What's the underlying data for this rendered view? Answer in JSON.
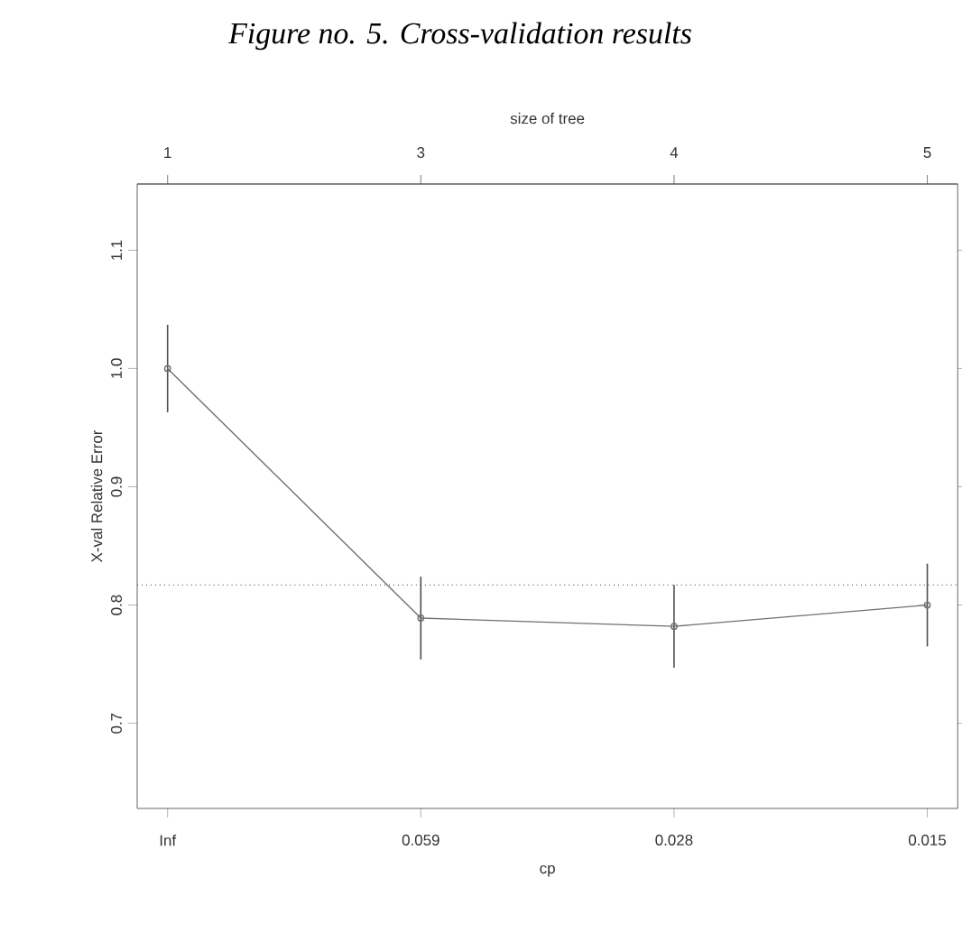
{
  "chart_data": {
    "type": "line",
    "title": "*Figure no. 5. Cross-validation results*",
    "xlabel": "cp",
    "ylabel": "X-val Relative Error",
    "x2label": "size of tree",
    "categories": [
      "Inf",
      "0.059",
      "0.028",
      "0.015"
    ],
    "annotations": [
      {
        "text": "1",
        "x": "Inf"
      },
      {
        "text": "3",
        "x": "0.059"
      },
      {
        "text": "4",
        "x": "0.028"
      },
      {
        "text": "5",
        "x": "0.015"
      }
    ],
    "series": [
      {
        "color": "#707070",
        "values": [
          1.0,
          0.789,
          0.782,
          0.8
        ],
        "errors": [
          0.037,
          0.035,
          0.035,
          0.035
        ]
      }
    ],
    "ylim": [
      0.628,
      1.156
    ],
    "yticks": [
      0.7,
      0.8,
      0.9,
      {
        "value": 1.0,
        "label": "1.0"
      },
      1.1
    ],
    "ref_lines": [
      {
        "axis": "y",
        "value": 0.817,
        "color": "#333333",
        "line_style": "dotted"
      }
    ],
    "marker": "circle",
    "line_style": "solid"
  }
}
